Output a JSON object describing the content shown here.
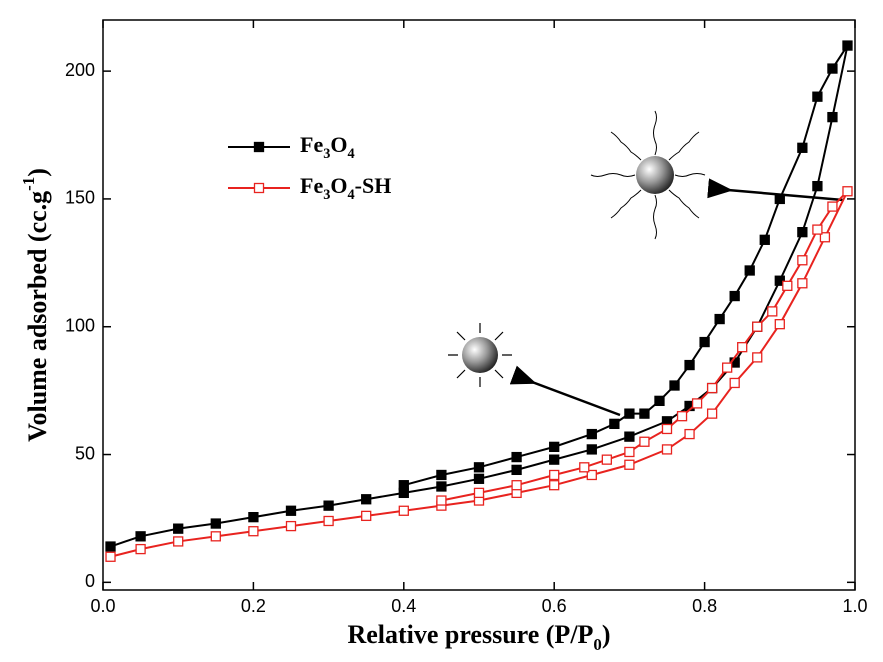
{
  "chart_data": {
    "type": "line",
    "x_label": "Relative pressure (P/P0)",
    "y_label": "Volume adsorbed (cc.g-1)",
    "xlim": [
      0,
      1.0
    ],
    "ylim": [
      -3,
      220
    ],
    "xticks": [
      {
        "value": 0,
        "label": "0.0"
      },
      0.2,
      0.4,
      0.6,
      0.8,
      {
        "value": 1,
        "label": "1.0"
      }
    ],
    "yticks": [
      0,
      50,
      100,
      150,
      200
    ],
    "series": [
      {
        "name": "Fe3O4",
        "color": "#000000",
        "marker": "filled-square",
        "x": [
          0.01,
          0.05,
          0.1,
          0.15,
          0.2,
          0.25,
          0.3,
          0.35,
          0.4,
          0.45,
          0.5,
          0.55,
          0.6,
          0.65,
          0.7,
          0.75,
          0.78,
          0.81,
          0.84,
          0.87,
          0.9,
          0.93,
          0.95,
          0.97,
          0.99,
          0.97,
          0.95,
          0.93,
          0.9,
          0.88,
          0.86,
          0.84,
          0.82,
          0.8,
          0.78,
          0.76,
          0.74,
          0.72,
          0.7,
          0.68,
          0.65,
          0.6,
          0.55,
          0.5,
          0.45,
          0.4
        ],
        "values": [
          14,
          18,
          21,
          23,
          25.5,
          28,
          30,
          32.5,
          35,
          37.5,
          40.5,
          44,
          48,
          52,
          57,
          63,
          69,
          76,
          86,
          100,
          118,
          137,
          155,
          182,
          210,
          201,
          190,
          170,
          150,
          134,
          122,
          112,
          103,
          94,
          85,
          77,
          71,
          66,
          66,
          62,
          58,
          53,
          49,
          45,
          42,
          38
        ]
      },
      {
        "name": "Fe3O4-SH",
        "color": "#e8231f",
        "marker": "open-square",
        "x": [
          0.01,
          0.05,
          0.1,
          0.15,
          0.2,
          0.25,
          0.3,
          0.35,
          0.4,
          0.45,
          0.5,
          0.55,
          0.6,
          0.65,
          0.7,
          0.75,
          0.78,
          0.81,
          0.84,
          0.87,
          0.9,
          0.93,
          0.96,
          0.99,
          0.97,
          0.95,
          0.93,
          0.91,
          0.89,
          0.87,
          0.85,
          0.83,
          0.81,
          0.79,
          0.77,
          0.75,
          0.72,
          0.7,
          0.67,
          0.64,
          0.6,
          0.55,
          0.5,
          0.45
        ],
        "values": [
          10,
          13,
          16,
          18,
          20,
          22,
          24,
          26,
          28,
          30,
          32,
          35,
          38,
          42,
          46,
          52,
          58,
          66,
          78,
          88,
          101,
          117,
          135,
          153,
          147,
          138,
          126,
          116,
          106,
          100,
          92,
          84,
          76,
          70,
          65,
          60,
          55,
          51,
          48,
          45,
          42,
          38,
          35,
          32
        ]
      }
    ]
  }
}
